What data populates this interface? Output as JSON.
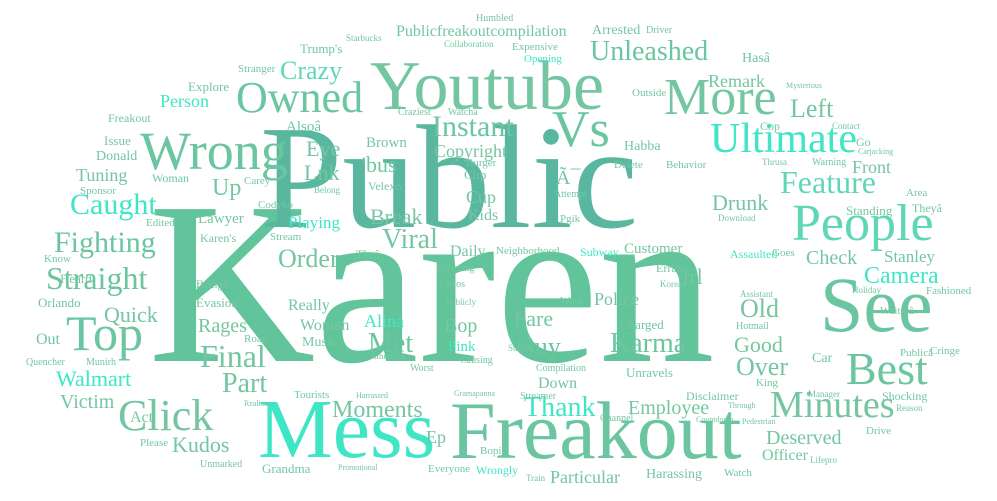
{
  "words": [
    "Karen",
    "Public",
    "Freakout",
    "Mess",
    "Youtube",
    "See",
    "People",
    "Wrong",
    "Best",
    "Vs",
    "Ultimate",
    "Top",
    "Owned",
    "More",
    "Click",
    "Minutes",
    "Straight",
    "Fighting",
    "Feature",
    "Caught",
    "Instant",
    "Final",
    "Unleashed",
    "Karma",
    "Part",
    "Thank",
    "Moments",
    "Walmart",
    "Crazy",
    "Viral",
    "Met",
    "Guy",
    "Break",
    "Left",
    "Camera",
    "Old",
    "Order",
    "Quick",
    "Good",
    "Over",
    "Check",
    "Rages",
    "Alina",
    "Employee",
    "Deserved",
    "Kudos",
    "Victim",
    "Police",
    "Fare",
    "Particular",
    "Drunk",
    "Copyright",
    "Front",
    "Lnk",
    "Stanley",
    "Bop",
    "Up",
    "Eye",
    "Person",
    "Publicfreakoutcompilation",
    "Remark",
    "Tuning",
    "Playing",
    "Cup",
    "Kids",
    "Daily",
    "Woman",
    "Officer",
    "Harassing",
    "Irl",
    "Customer",
    "Charged",
    "Pink",
    "Down",
    "Ep",
    "Really",
    "Music",
    "Lawyer",
    "Evasion'",
    "'bus",
    "Brown",
    "Alsoâ",
    "Instant",
    "Harrassing",
    "Ã¯",
    "Pgik",
    "Bopit",
    "Act",
    "Out",
    "Know",
    "Edited",
    "Sponsor",
    "Donald",
    "Issue",
    "Freakout",
    "Explore",
    "Heard",
    "Orlando",
    "Quencher",
    "Munirh",
    "Grandma",
    "Please",
    "Unmarked",
    "Tourists",
    "Road",
    "Brings",
    "Karen's",
    "Stream",
    "Theâ",
    "Velexo",
    "Clip",
    "Burger",
    "Watcha",
    "Craziest",
    "Humbled",
    "Arrested",
    "Driver",
    "Expensive",
    "Opening",
    "Stranger",
    "Trump's",
    "Starbucks",
    "Collaboration",
    "Outside",
    "Mysterious",
    "Cop",
    "Habba",
    "Delete",
    "Behavior",
    "Attempt",
    "Subway",
    "Neighborhood",
    "Referring",
    "Chaos",
    "Publicly",
    "Want",
    "Korean",
    "Assistant",
    "Hotmail",
    "Assaulted",
    "Goes",
    "Erratic",
    "Holiday",
    "Fashioned",
    "Waiterâ",
    "Publicâ",
    "Cringe",
    "Manager",
    "Car",
    "King",
    "Shocking",
    "Reason",
    "Drive",
    "Lifepro",
    "Watch",
    "Through",
    "Countdown",
    "Disclaimer",
    "Unravels",
    "Compilation",
    "Station",
    "Causing",
    "American",
    "Worst",
    "Wrongly",
    "Everyone",
    "Train",
    "Promotional",
    "Realizes",
    "Harrassed",
    "Gramapanna",
    "Streamer",
    "Channel",
    "Pedestrian",
    "Theyâ",
    "Area",
    "Standing",
    "Download",
    "Warning",
    "Thrusa",
    "Contact",
    "Go",
    "Carjacking",
    "Hasâ",
    "Sign",
    "Carey",
    "Codyko",
    "Belong",
    "Woman",
    "Holiday"
  ]
}
